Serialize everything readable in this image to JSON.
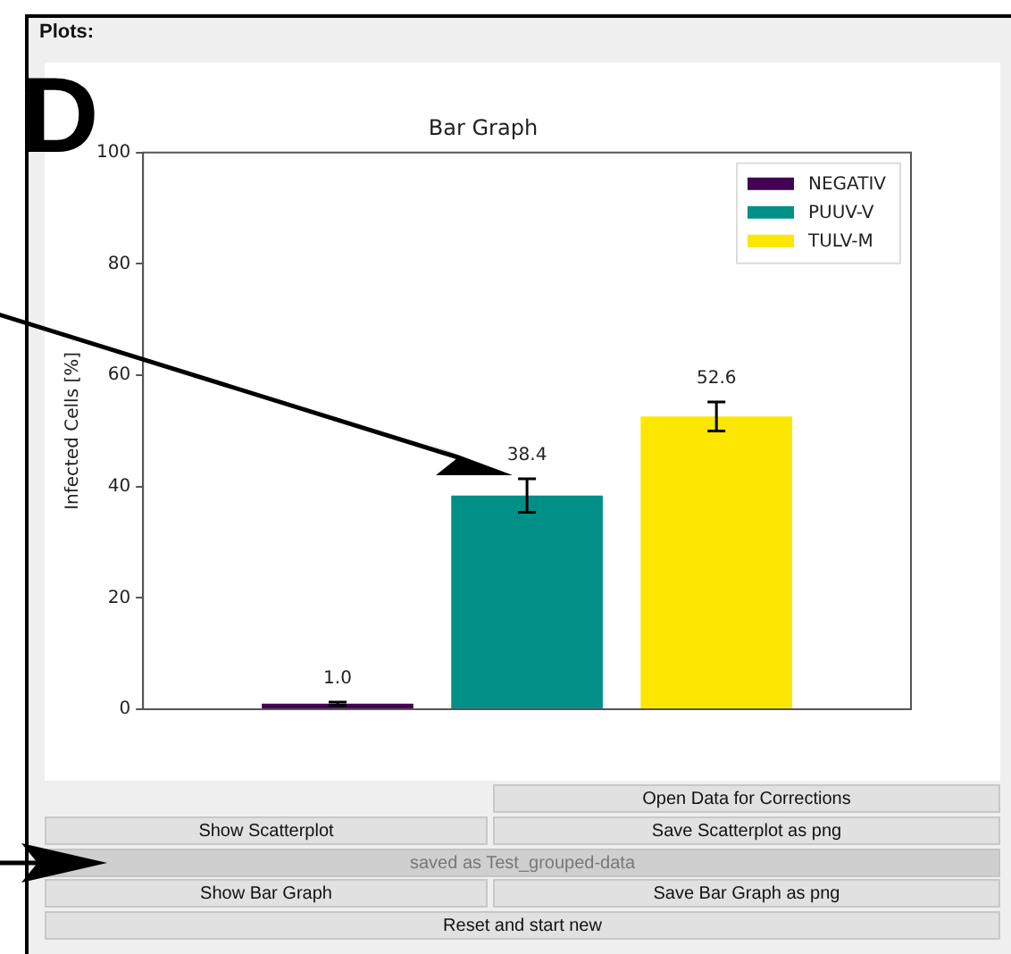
{
  "chart_data": {
    "type": "bar",
    "title": "Bar Graph",
    "ylabel": "Infected Cells [%]",
    "categories": [
      null
    ],
    "series": [
      {
        "name": "NEGATIV",
        "color": "#440154",
        "values": [
          1.0
        ],
        "errors": [
          0.3
        ],
        "value_labels": [
          "1.0"
        ]
      },
      {
        "name": "PUUV-V",
        "color": "#009087",
        "values": [
          38.4
        ],
        "errors": [
          3
        ],
        "value_labels": [
          "38.4"
        ]
      },
      {
        "name": "TULV-M",
        "color": "#fde600",
        "values": [
          52.6
        ],
        "errors": [
          2.6
        ],
        "value_labels": [
          "52.6"
        ]
      }
    ],
    "ylim": [
      0,
      100
    ],
    "yticks": [
      0,
      20,
      40,
      60,
      80,
      100
    ],
    "grid": false,
    "legend": "top right",
    "tick_labels": "y",
    "annotations": [
      "D",
      "Plots:",
      "Open Data for Corrections",
      "Show Scatterplot",
      "Save Scatterplot as png",
      "saved as Test_grouped-data",
      "Show Bar Graph",
      "Save Bar Graph as png",
      "Reset and start new"
    ]
  }
}
